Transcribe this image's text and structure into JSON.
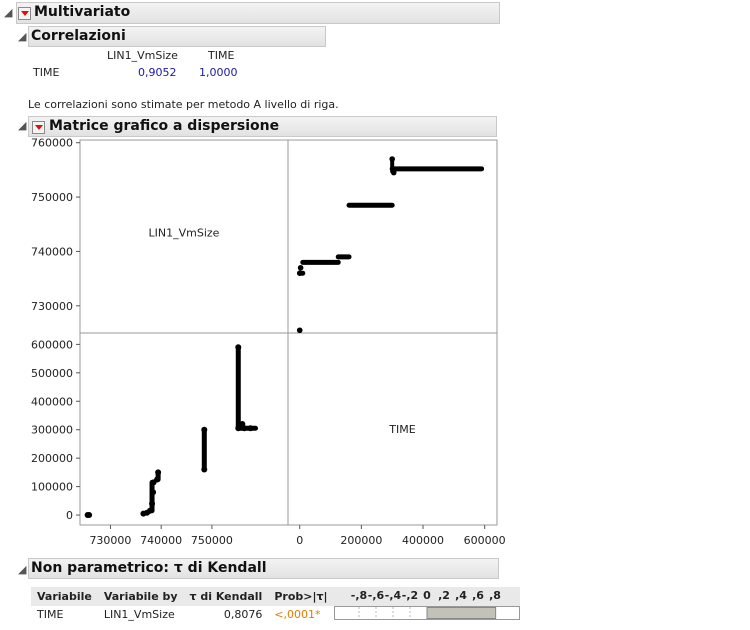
{
  "multivariate": {
    "title": "Multivariato"
  },
  "correlations": {
    "title": "Correlazioni",
    "columns": [
      "LIN1_VmSize",
      "TIME"
    ],
    "row_label": "TIME",
    "values": [
      "0,9052",
      "1,0000"
    ],
    "note": "Le correlazioni sono stimate per metodo A livello di riga."
  },
  "scatter": {
    "title": "Matrice grafico a dispersione",
    "diag_labels": [
      "LIN1_VmSize",
      "TIME"
    ]
  },
  "chart_data": {
    "type": "scatter",
    "variables": [
      "LIN1_VmSize",
      "TIME"
    ],
    "y_axis_top": {
      "variable": "LIN1_VmSize",
      "ticks": [
        "760000",
        "750000",
        "740000",
        "730000"
      ],
      "tick_values": [
        760000,
        750000,
        740000,
        730000
      ],
      "range": [
        725000,
        760500
      ]
    },
    "y_axis_bottom": {
      "variable": "TIME",
      "ticks": [
        "600000",
        "500000",
        "400000",
        "300000",
        "200000",
        "100000",
        "0"
      ],
      "tick_values": [
        600000,
        500000,
        400000,
        300000,
        200000,
        100000,
        0
      ],
      "range": [
        -35000,
        640000
      ]
    },
    "x_axis_left": {
      "variable": "LIN1_VmSize",
      "ticks": [
        "730000",
        "740000",
        "750000"
      ],
      "tick_values": [
        730000,
        740000,
        750000
      ],
      "range": [
        724000,
        765000
      ]
    },
    "x_axis_right": {
      "variable": "TIME",
      "ticks": [
        "0",
        "200000",
        "400000",
        "600000"
      ],
      "tick_values": [
        0,
        200000,
        400000,
        600000
      ],
      "range": [
        -38000,
        640000
      ]
    },
    "series": [
      {
        "name": "TIME vs LIN1_VmSize",
        "points": [
          [
            725500,
            0
          ],
          [
            725800,
            0
          ],
          [
            736500,
            5000
          ],
          [
            737200,
            8000
          ],
          [
            737800,
            15000
          ],
          [
            738200,
            40000
          ],
          [
            738400,
            80000
          ],
          [
            738500,
            115000
          ],
          [
            739200,
            125000
          ],
          [
            739400,
            150000
          ],
          [
            748500,
            160000
          ],
          [
            748500,
            300000
          ],
          [
            755200,
            305000
          ],
          [
            755200,
            590000
          ],
          [
            756400,
            305000
          ],
          [
            757600,
            305000
          ],
          [
            756000,
            320000
          ]
        ]
      }
    ],
    "step_segments_time_vs_vmsize": [
      {
        "x_from": 0,
        "x_to": 0,
        "y": 725500
      },
      {
        "x_from": 2000,
        "x_to": 10000,
        "y": 736000
      },
      {
        "x_from": 10000,
        "x_to": 125000,
        "y": 738000
      },
      {
        "x_from": 125000,
        "x_to": 160000,
        "y": 739000
      },
      {
        "x_from": 160000,
        "x_to": 300000,
        "y": 748500
      },
      {
        "x_from": 300000,
        "x_to": 590000,
        "y": 755200
      }
    ]
  },
  "kendall": {
    "title": "Non parametrico: τ di Kendall",
    "headers": [
      "Variabile",
      "Variabile by",
      "τ di Kendall",
      "Prob>|τ|"
    ],
    "bar_ticks": [
      "-,8",
      "-,6",
      "-,4",
      "-,2",
      "0",
      ",2",
      ",4",
      ",6",
      ",8"
    ],
    "row": {
      "variable": "TIME",
      "by": "LIN1_VmSize",
      "tau": "0,8076",
      "prob": "<,0001*"
    },
    "tau_value": 0.8076
  }
}
